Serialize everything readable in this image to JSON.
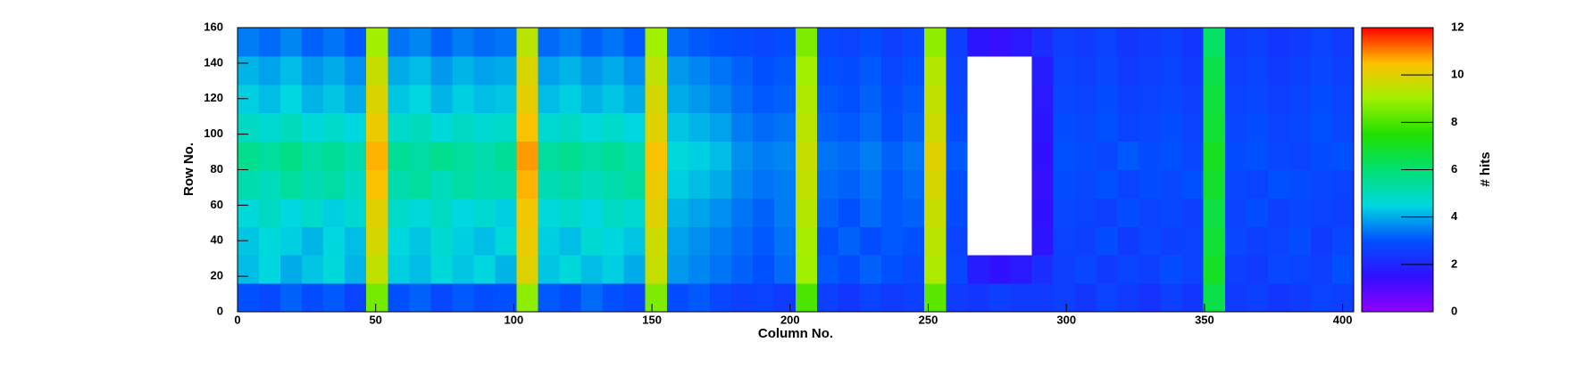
{
  "chart_data": {
    "type": "heatmap",
    "x_label": "Column No.",
    "y_label": "Row No.",
    "z_label": "# hits",
    "xlim": [
      0,
      404
    ],
    "ylim": [
      0,
      160
    ],
    "zlim": [
      0,
      12
    ],
    "xticks": [
      0,
      50,
      100,
      150,
      200,
      250,
      300,
      350,
      400
    ],
    "yticks": [
      0,
      20,
      40,
      60,
      80,
      100,
      120,
      140,
      160
    ],
    "zticks": [
      0,
      2,
      4,
      6,
      8,
      10,
      12
    ],
    "palette": [
      "#9000ff",
      "#3010ff",
      "#0050ff",
      "#00d8e0",
      "#00e070",
      "#20e000",
      "#a0f000",
      "#ffc000",
      "#ff0000"
    ],
    "empty_color": "#ffffff",
    "z": [
      [
        3,
        2.8,
        3.2,
        2.9,
        3.1,
        2.7,
        8.5,
        3,
        3.2,
        2.8,
        3.1,
        2.9,
        3,
        8.8,
        3.1,
        2.9,
        3.3,
        3,
        2.8,
        8.6,
        2.9,
        3.1,
        2.8,
        2.6,
        2.7,
        2.5,
        8,
        2.6,
        2.4,
        2.7,
        2.5,
        2.6,
        8.2,
        2.5,
        2.4,
        2.6,
        2.5,
        2.5,
        2.6,
        2.4,
        2.7,
        2.5,
        2.3,
        2.6,
        2.4,
        6.5,
        2.5,
        2.6,
        2.4,
        2.5,
        2.7,
        2.6
      ],
      [
        4.2,
        4.5,
        4,
        4.3,
        4.6,
        4.1,
        9.5,
        4.4,
        4.2,
        4.6,
        4.3,
        4.5,
        4.1,
        10,
        4.3,
        4.6,
        4.2,
        4.4,
        4,
        9.6,
        3.8,
        3.6,
        3.4,
        3.2,
        3,
        3.3,
        9,
        3.1,
        2.9,
        3.2,
        3,
        2.8,
        9.2,
        2.8,
        1.8,
        1.5,
        1.7,
        2.2,
        2.6,
        2.8,
        2.5,
        2.7,
        2.6,
        2.9,
        2.7,
        7,
        2.6,
        2.5,
        2.8,
        2.7,
        2.6,
        3
      ],
      [
        4.3,
        4.6,
        4.4,
        4.1,
        4.5,
        4.2,
        9.8,
        4.5,
        4.3,
        4.7,
        4.4,
        4.2,
        4.6,
        10.2,
        4.4,
        4.2,
        4.7,
        4.5,
        4.3,
        9.7,
        3.9,
        3.7,
        3.5,
        3.3,
        3.1,
        3.4,
        9.1,
        3,
        3.2,
        2.9,
        3.1,
        3,
        9.4,
        2.7,
        0,
        0,
        0,
        1.6,
        2.7,
        2.6,
        2.9,
        2.5,
        2.8,
        2.6,
        2.7,
        6.8,
        2.8,
        2.6,
        2.7,
        2.9,
        2.5,
        2.8
      ],
      [
        4.6,
        4.9,
        4.5,
        4.8,
        4.4,
        4.7,
        10,
        4.8,
        4.6,
        4.9,
        4.5,
        4.7,
        4.4,
        10.3,
        4.6,
        4.8,
        4.5,
        4.9,
        4.7,
        10,
        4.1,
        3.9,
        3.7,
        3.4,
        3.2,
        3.5,
        9.3,
        3.2,
        3,
        3.3,
        3.1,
        3.2,
        9.6,
        2.9,
        0,
        0,
        0,
        1.5,
        2.8,
        2.7,
        2.6,
        2.9,
        2.7,
        2.8,
        2.6,
        6.6,
        2.7,
        2.9,
        2.6,
        2.8,
        2.7,
        2.6
      ],
      [
        5.2,
        5,
        5.4,
        5.1,
        5.3,
        4.9,
        10.4,
        5.2,
        5.4,
        5,
        5.3,
        5.1,
        5.2,
        10.6,
        5.1,
        5.3,
        5,
        5.2,
        5.4,
        10.2,
        4.4,
        4.2,
        4,
        3.6,
        3.4,
        3.5,
        9.5,
        3.3,
        3.2,
        3.4,
        3.1,
        3.3,
        9.8,
        3,
        0,
        0,
        0,
        1.4,
        2.9,
        2.8,
        3,
        2.7,
        2.9,
        2.8,
        3,
        6.9,
        2.8,
        2.7,
        3,
        2.9,
        2.8,
        2.7
      ],
      [
        5.6,
        5.4,
        5.7,
        5.3,
        5.5,
        5.2,
        10.6,
        5.5,
        5.3,
        5.6,
        5.4,
        5.2,
        5.5,
        10.8,
        5.4,
        5.6,
        5.3,
        5.5,
        5.2,
        10.4,
        4.6,
        4.4,
        4.2,
        3.7,
        3.5,
        3.6,
        9.6,
        3.4,
        3.3,
        3.5,
        3.2,
        3.4,
        10,
        3.1,
        0,
        0,
        0,
        1.5,
        3,
        2.9,
        2.8,
        3.1,
        2.9,
        3,
        2.8,
        7.1,
        2.9,
        3,
        2.8,
        2.7,
        2.9,
        3
      ],
      [
        4.9,
        4.7,
        5,
        4.6,
        4.8,
        4.5,
        10.2,
        4.8,
        5,
        4.6,
        4.9,
        4.7,
        4.8,
        10.4,
        4.7,
        4.9,
        4.6,
        4.8,
        4.5,
        10,
        4.3,
        4.1,
        3.9,
        3.5,
        3.3,
        3.4,
        9.4,
        3.2,
        3.1,
        3.3,
        3,
        3.2,
        9.7,
        2.9,
        0,
        0,
        0,
        1.6,
        2.9,
        2.8,
        3,
        2.7,
        2.8,
        2.9,
        2.7,
        6.8,
        2.8,
        2.9,
        2.7,
        2.8,
        3,
        2.8
      ],
      [
        4.4,
        4.2,
        4.5,
        4.1,
        4.3,
        4,
        9.9,
        4.3,
        4.5,
        4.1,
        4.4,
        4.2,
        4.3,
        10.1,
        4.2,
        4.4,
        4.1,
        4.3,
        4,
        9.8,
        4,
        3.8,
        3.6,
        3.3,
        3.1,
        3.2,
        9.2,
        3.1,
        3,
        3.2,
        2.9,
        3.1,
        9.5,
        2.8,
        0,
        0,
        0,
        1.7,
        2.8,
        2.7,
        2.9,
        2.6,
        2.7,
        2.8,
        2.6,
        6.7,
        2.7,
        2.8,
        2.6,
        2.7,
        2.9,
        2.7
      ],
      [
        4.1,
        3.9,
        4.2,
        3.8,
        4,
        3.7,
        9.6,
        4,
        4.2,
        3.8,
        4.1,
        3.9,
        4,
        9.9,
        3.9,
        4.1,
        3.8,
        4,
        3.7,
        9.5,
        3.8,
        3.6,
        3.4,
        3.2,
        3,
        3.1,
        9,
        3,
        2.9,
        3.1,
        2.8,
        3,
        9.3,
        2.7,
        0,
        0,
        0,
        1.8,
        2.7,
        2.6,
        2.8,
        2.5,
        2.6,
        2.7,
        2.5,
        6.5,
        2.6,
        2.7,
        2.5,
        2.6,
        2.8,
        2.6
      ],
      [
        3.5,
        3.3,
        3.6,
        3.2,
        3.4,
        3.1,
        9,
        3.4,
        3.6,
        3.2,
        3.5,
        3.3,
        3.4,
        9.4,
        3.3,
        3.5,
        3.2,
        3.4,
        3.1,
        9,
        3.3,
        3.1,
        3,
        2.9,
        2.8,
        2.9,
        8.6,
        2.8,
        2.7,
        2.9,
        2.6,
        2.8,
        8.8,
        2.6,
        1.6,
        1.4,
        1.7,
        2.2,
        2.6,
        2.5,
        2.7,
        2.4,
        2.5,
        2.6,
        2.4,
        6.2,
        2.5,
        2.6,
        2.4,
        2.5,
        2.7,
        2.5
      ]
    ]
  }
}
